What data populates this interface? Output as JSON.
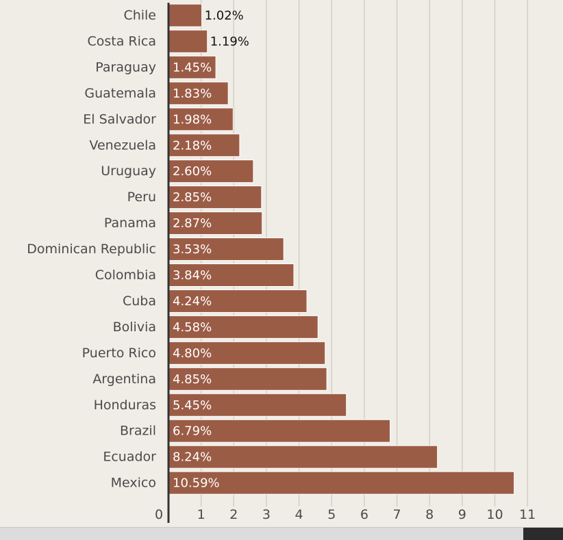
{
  "chart_data": {
    "type": "bar",
    "orientation": "horizontal",
    "categories": [
      "Chile",
      "Costa Rica",
      "Paraguay",
      "Guatemala",
      "El Salvador",
      "Venezuela",
      "Uruguay",
      "Peru",
      "Panama",
      "Dominican Republic",
      "Colombia",
      "Cuba",
      "Bolivia",
      "Puerto Rico",
      "Argentina",
      "Honduras",
      "Brazil",
      "Ecuador",
      "Mexico"
    ],
    "values": [
      1.02,
      1.19,
      1.45,
      1.83,
      1.98,
      2.18,
      2.6,
      2.85,
      2.87,
      3.53,
      3.84,
      4.24,
      4.58,
      4.8,
      4.85,
      5.45,
      6.79,
      8.24,
      10.59
    ],
    "value_labels": [
      "1.02%",
      "1.19%",
      "1.45%",
      "1.83%",
      "1.98%",
      "2.18%",
      "2.60%",
      "2.85%",
      "2.87%",
      "3.53%",
      "3.84%",
      "4.24%",
      "4.58%",
      "4.80%",
      "4.85%",
      "5.45%",
      "6.79%",
      "8.24%",
      "10.59%"
    ],
    "xticks": [
      0,
      1,
      2,
      3,
      4,
      5,
      6,
      7,
      8,
      9,
      10,
      11
    ],
    "xtick_labels": [
      "0",
      "1",
      "2",
      "3",
      "4",
      "5",
      "6",
      "7",
      "8",
      "9",
      "10",
      "11"
    ],
    "xlim": [
      0,
      11
    ],
    "grid": true,
    "colors": {
      "bar": "#9b5c46",
      "grid": "#cfcac0",
      "axis": "#333333",
      "background": "#f0ede6"
    }
  }
}
